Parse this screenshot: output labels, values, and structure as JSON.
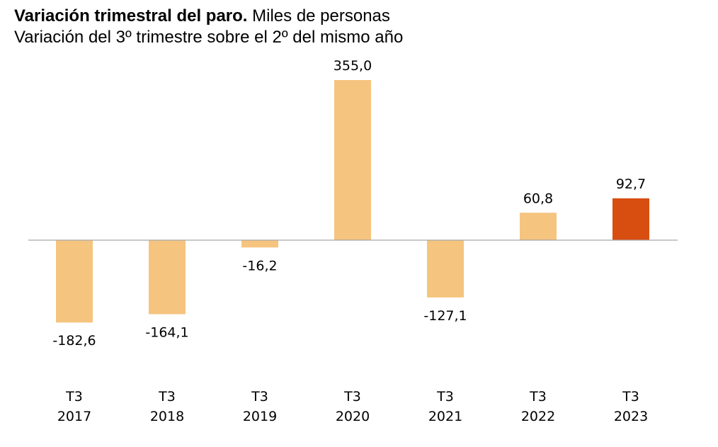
{
  "chart_data": {
    "type": "bar",
    "title": "Variación trimestral del paro.",
    "title_suffix": "Miles de personas",
    "subtitle": "Variación del 3º trimestre sobre el 2º del mismo año",
    "categories": [
      [
        "T3",
        "2017"
      ],
      [
        "T3",
        "2018"
      ],
      [
        "T3",
        "2019"
      ],
      [
        "T3",
        "2020"
      ],
      [
        "T3",
        "2021"
      ],
      [
        "T3",
        "2022"
      ],
      [
        "T3",
        "2023"
      ]
    ],
    "values": [
      -182.6,
      -164.1,
      -16.2,
      355.0,
      -127.1,
      60.8,
      92.7
    ],
    "value_labels": [
      "-182,6",
      "-164,1",
      "-16,2",
      "355,0",
      "-127,1",
      "60,8",
      "92,7"
    ],
    "xlabel": "",
    "ylabel": "",
    "grid": false,
    "colors": {
      "bar": "#F5C47E",
      "highlight": "#D84E10",
      "axis": "#A6A6A6"
    },
    "highlight_index": 6
  }
}
